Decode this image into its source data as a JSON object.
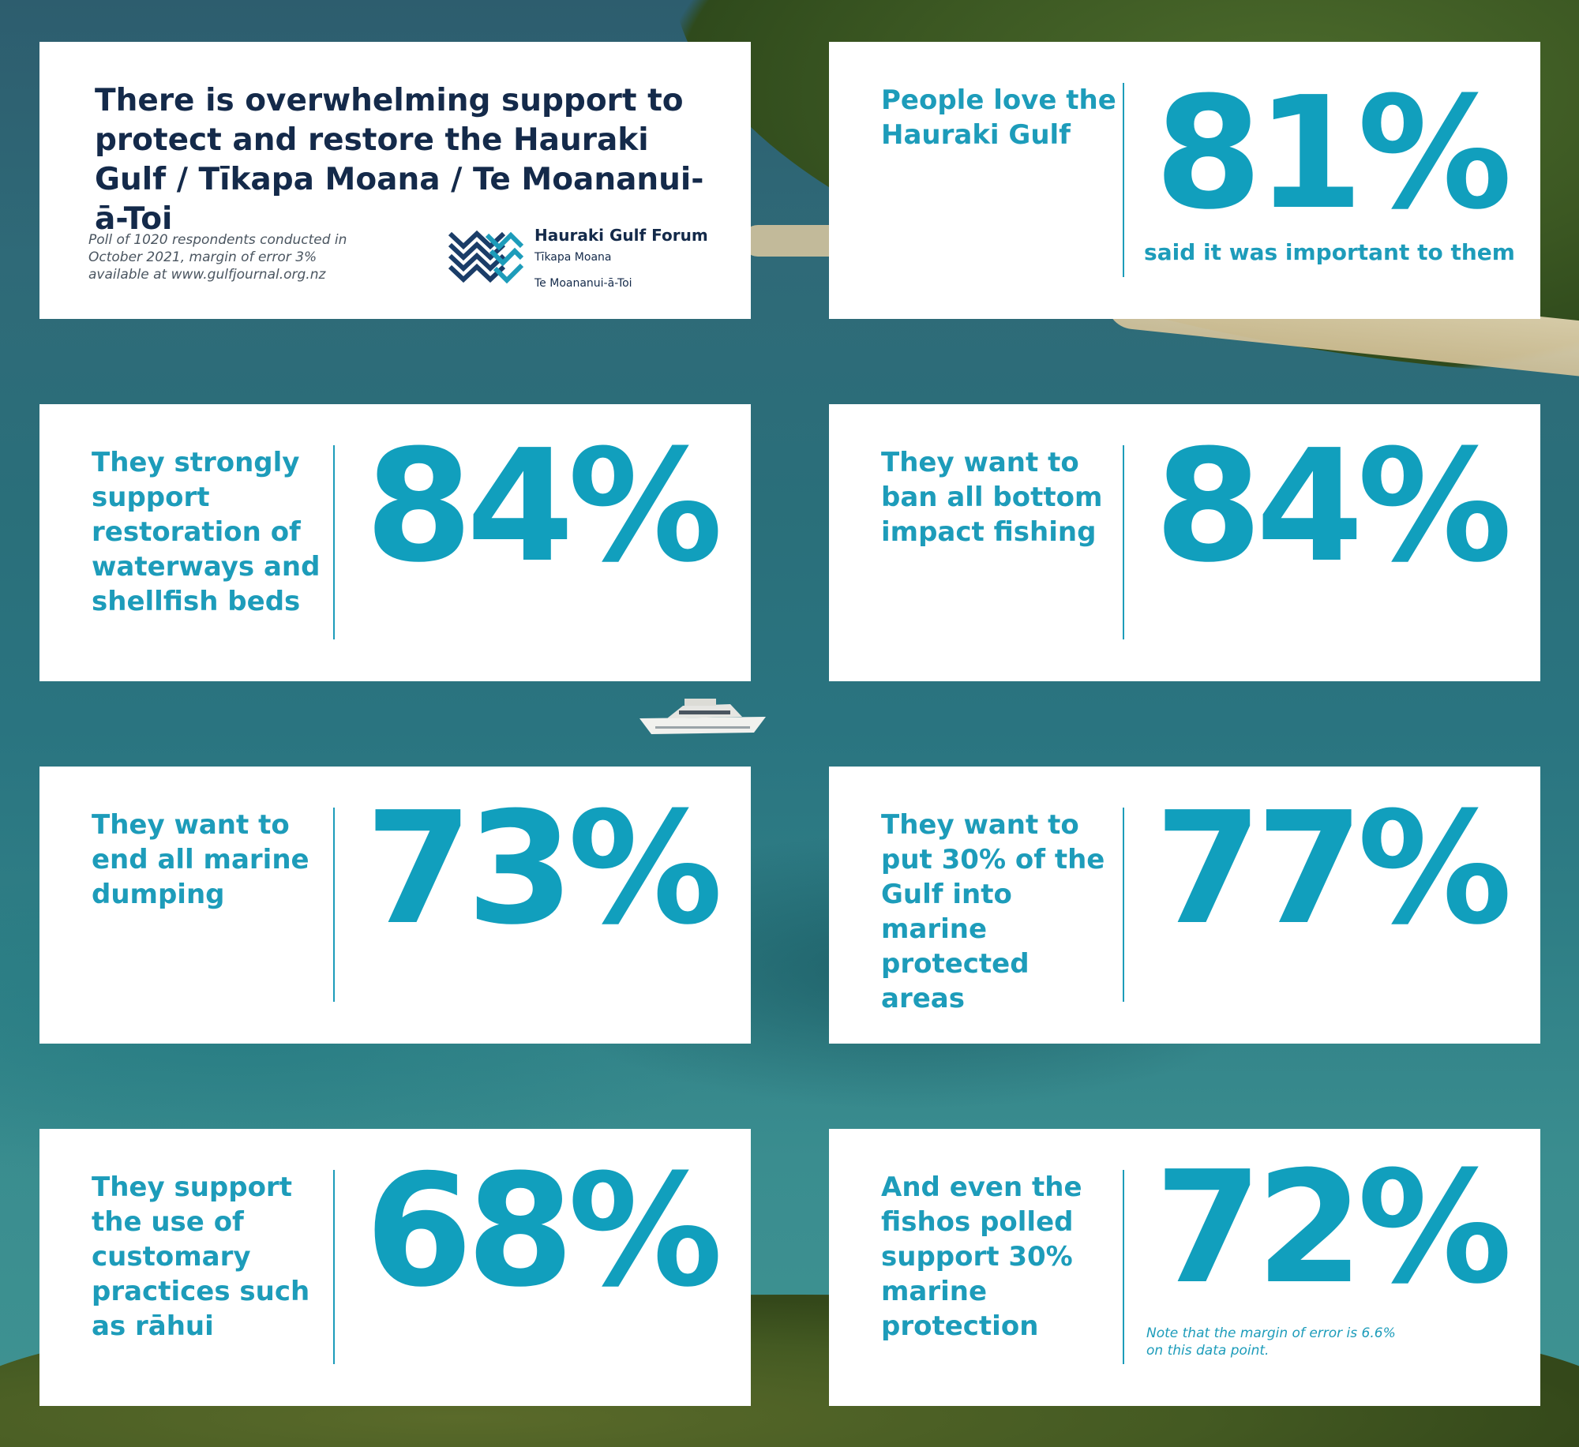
{
  "title_card": {
    "title": "There is overwhelming support to protect and restore the Hauraki Gulf / Tīkapa Moana / Te Moananui-ā-Toi",
    "poll_note": "Poll of 1020 respondents conducted in October 2021, margin of error 3% available at www.gulfjournal.org.nz",
    "logo": {
      "name": "Hauraki Gulf Forum",
      "sub1": "Tīkapa Moana",
      "sub2": "Te Moananui-ā-Toi"
    }
  },
  "stats": [
    {
      "description": "People love the Hauraki Gulf",
      "value": "81%",
      "caption": "said it was important to them"
    },
    {
      "description": "They strongly support restoration of waterways and shellfish beds",
      "value": "84%"
    },
    {
      "description": "They want to ban all bottom impact fishing",
      "value": "84%"
    },
    {
      "description": "They want to end all marine dumping",
      "value": "73%"
    },
    {
      "description": "They want to put 30% of the Gulf into marine protected areas",
      "value": "77%"
    },
    {
      "description": "They support the use of customary practices such as rāhui",
      "value": "68%"
    },
    {
      "description": "And even the fishos polled support 30% marine protection",
      "value": "72%",
      "note": "Note that the margin of error is 6.6% on this data point."
    }
  ],
  "colors": {
    "accent": "#1d9cba",
    "title": "#142a4a",
    "card": "#ffffff"
  }
}
